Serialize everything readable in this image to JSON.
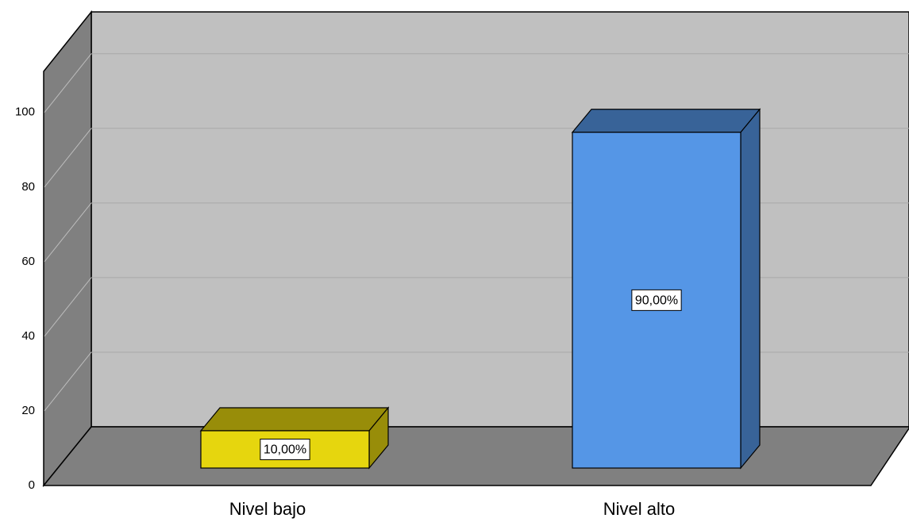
{
  "chart_data": {
    "type": "bar",
    "categories": [
      "Nivel bajo",
      "Nivel alto"
    ],
    "values": [
      10,
      90
    ],
    "value_labels": [
      "10,00%",
      "90,00%"
    ],
    "colors": [
      "#e6d60e",
      "#5596e6"
    ],
    "ylim": [
      0,
      111
    ],
    "yticks": [
      0,
      20,
      40,
      60,
      80,
      100
    ],
    "grid": true
  }
}
